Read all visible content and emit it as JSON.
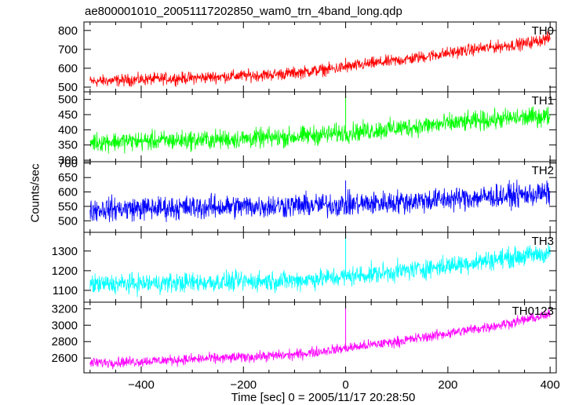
{
  "title": "ae800001010_20051117202850_wam0_trn_4band_long.qdp",
  "ylabel": "Counts/sec",
  "xlabel": "Time [sec] 0 = 2005/11/17 20:28:50",
  "chart_data": {
    "type": "line",
    "x_range": [
      -512,
      412
    ],
    "x_ticks": [
      -400,
      -200,
      0,
      200,
      400
    ],
    "x_tick_labels": [
      "−400",
      "−200",
      "0",
      "200",
      "400"
    ],
    "grid": false,
    "panels": [
      {
        "label": "TH0",
        "color": "#ff0000",
        "ylim": [
          475,
          845
        ],
        "y_ticks": [
          500,
          600,
          700,
          800
        ],
        "x": [
          -500,
          -450,
          -400,
          -350,
          -300,
          -250,
          -200,
          -150,
          -100,
          -50,
          0,
          50,
          100,
          150,
          200,
          250,
          300,
          350,
          400
        ],
        "values": [
          530,
          535,
          540,
          545,
          548,
          555,
          560,
          565,
          575,
          590,
          605,
          625,
          640,
          660,
          680,
          700,
          715,
          730,
          760
        ],
        "noise": 35,
        "spike": {
          "x": 0,
          "value": 655
        }
      },
      {
        "label": "TH1",
        "color": "#00ff00",
        "ylim": [
          295,
          525
        ],
        "y_ticks": [
          300,
          350,
          400,
          450,
          500
        ],
        "x": [
          -500,
          -400,
          -300,
          -200,
          -100,
          0,
          100,
          200,
          300,
          400
        ],
        "values": [
          360,
          363,
          366,
          370,
          377,
          390,
          405,
          420,
          435,
          445
        ],
        "noise": 35,
        "spike": {
          "x": 0,
          "value": 510
        }
      },
      {
        "label": "TH2",
        "color": "#0000ff",
        "ylim": [
          460,
          705
        ],
        "y_ticks": [
          500,
          550,
          600,
          650,
          700
        ],
        "x": [
          -500,
          -400,
          -300,
          -200,
          -100,
          0,
          100,
          200,
          300,
          400
        ],
        "values": [
          540,
          543,
          546,
          550,
          553,
          556,
          565,
          575,
          585,
          595
        ],
        "noise": 45,
        "spike": {
          "x": 0,
          "value": 640
        }
      },
      {
        "label": "TH3",
        "color": "#00ffff",
        "ylim": [
          1040,
          1395
        ],
        "y_ticks": [
          1100,
          1200,
          1300
        ],
        "x": [
          -500,
          -400,
          -300,
          -200,
          -100,
          0,
          100,
          200,
          300,
          400
        ],
        "values": [
          1130,
          1135,
          1140,
          1145,
          1150,
          1170,
          1195,
          1225,
          1260,
          1290
        ],
        "noise": 55,
        "spike": {
          "x": 0,
          "value": 1380
        }
      },
      {
        "label": "TH0123",
        "color": "#ff00ff",
        "ylim": [
          2420,
          3280
        ],
        "y_ticks": [
          2600,
          2800,
          3000,
          3200
        ],
        "x": [
          -500,
          -400,
          -300,
          -200,
          -100,
          0,
          100,
          200,
          300,
          400
        ],
        "values": [
          2540,
          2560,
          2585,
          2610,
          2640,
          2720,
          2800,
          2900,
          3000,
          3130
        ],
        "noise": 70,
        "spike": {
          "x": 0,
          "value": 3215
        }
      }
    ]
  }
}
